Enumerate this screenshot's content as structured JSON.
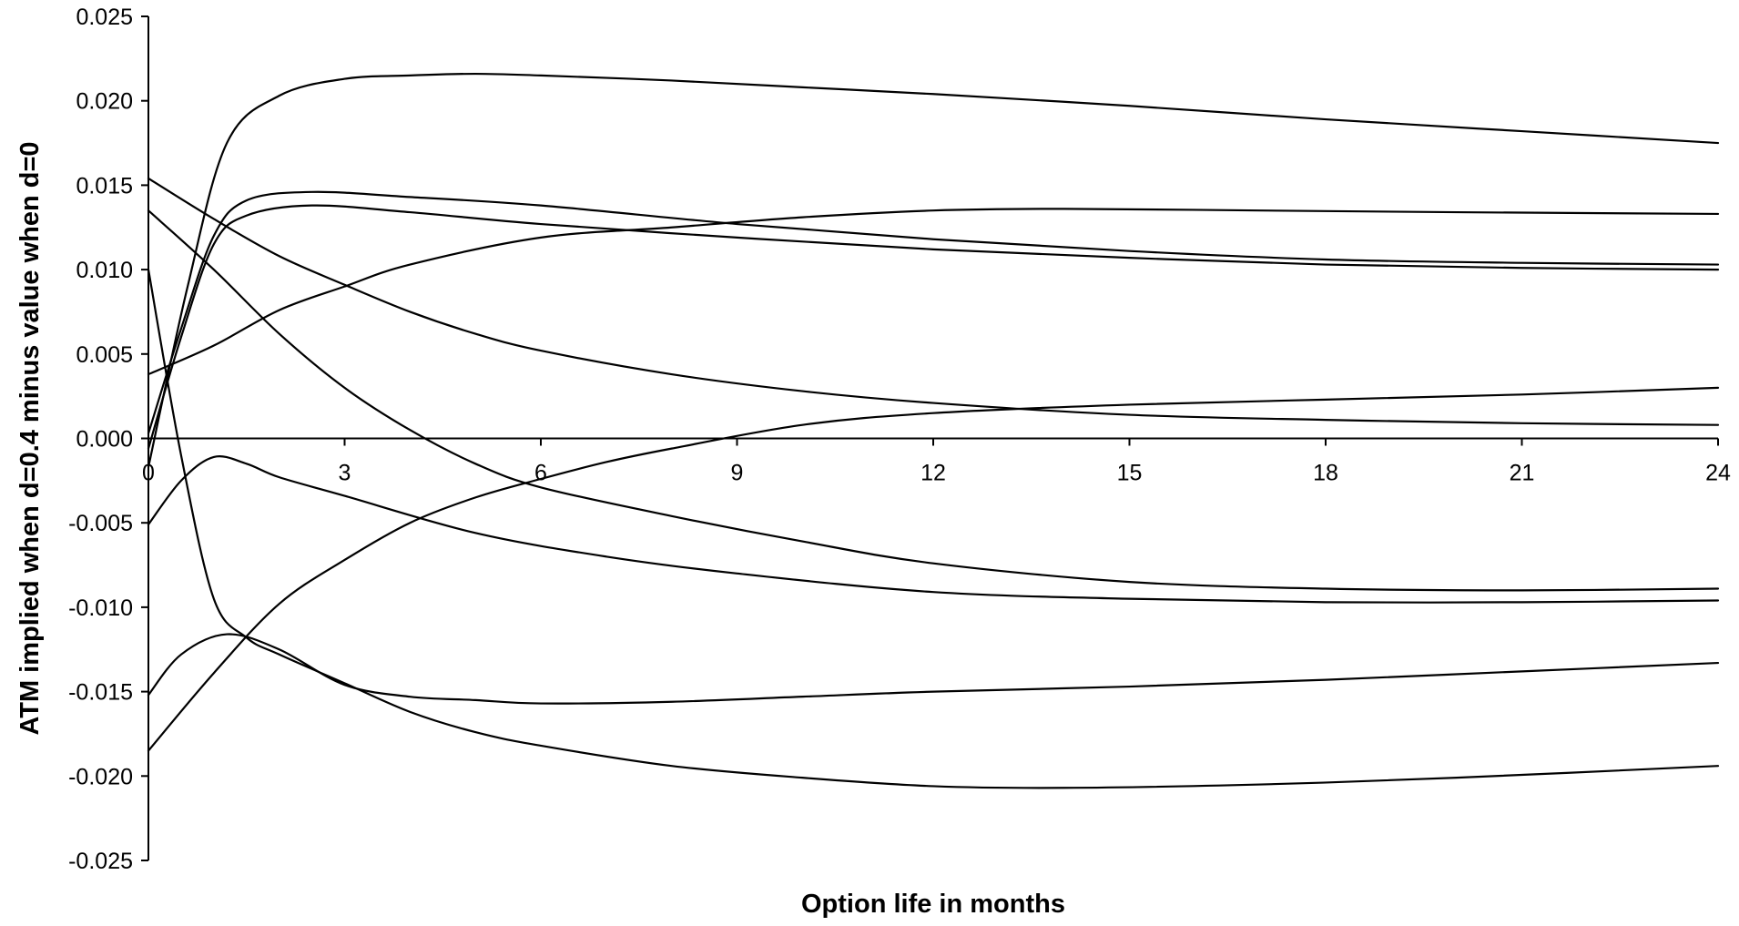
{
  "chart_data": {
    "type": "line",
    "title": "",
    "xlabel": "Option life in months",
    "ylabel": "ATM implied when d=0.4 minus value when d=0",
    "xlim": [
      0,
      24
    ],
    "ylim": [
      -0.025,
      0.025
    ],
    "x_ticks": [
      "0",
      "3",
      "6",
      "9",
      "12",
      "15",
      "18",
      "21",
      "24"
    ],
    "y_ticks": [
      "0.025",
      "0.020",
      "0.015",
      "0.010",
      "0.005",
      "0.000",
      "-0.005",
      "-0.010",
      "-0.015",
      "-0.020",
      "-0.025"
    ],
    "grid": false,
    "legend": "none",
    "line_color": "#000000",
    "series": [
      {
        "x": [
          0,
          0.6,
          1.2,
          2,
          3,
          4,
          5,
          6,
          8,
          10,
          12,
          15,
          18,
          21,
          24
        ],
        "values": [
          -0.0017,
          0.009,
          0.0175,
          0.0203,
          0.0213,
          0.0215,
          0.0216,
          0.0215,
          0.0212,
          0.0208,
          0.0204,
          0.0197,
          0.0189,
          0.0182,
          0.0175
        ]
      },
      {
        "x": [
          0,
          0.5,
          1,
          1.5,
          2.5,
          4,
          6,
          9,
          12,
          15,
          18,
          21,
          24
        ],
        "values": [
          0.0003,
          0.0065,
          0.012,
          0.0141,
          0.0146,
          0.0143,
          0.0138,
          0.0127,
          0.0118,
          0.0111,
          0.0106,
          0.0104,
          0.0103
        ]
      },
      {
        "x": [
          0,
          0.5,
          1,
          1.5,
          2.5,
          4,
          6,
          9,
          12,
          15,
          18,
          21,
          24
        ],
        "values": [
          -0.0006,
          0.006,
          0.0115,
          0.0132,
          0.0138,
          0.0134,
          0.0127,
          0.0119,
          0.0112,
          0.0107,
          0.0103,
          0.0101,
          0.01
        ]
      },
      {
        "x": [
          0,
          1,
          2,
          3,
          4,
          6,
          8,
          10,
          12,
          14,
          17,
          20,
          24
        ],
        "values": [
          0.0038,
          0.0055,
          0.0076,
          0.009,
          0.0103,
          0.0119,
          0.0125,
          0.0131,
          0.0135,
          0.0136,
          0.0135,
          0.0134,
          0.0133
        ]
      },
      {
        "x": [
          0,
          1,
          2,
          3,
          4,
          5,
          6,
          8,
          10,
          12,
          15,
          18,
          21,
          24
        ],
        "values": [
          0.0154,
          0.013,
          0.0108,
          0.0091,
          0.0075,
          0.0062,
          0.0052,
          0.0038,
          0.0028,
          0.0021,
          0.0014,
          0.0011,
          0.0009,
          0.0008
        ]
      },
      {
        "x": [
          0,
          1,
          2,
          3,
          4,
          5,
          6,
          8,
          10,
          12,
          15,
          18,
          21,
          24
        ],
        "values": [
          0.0135,
          0.01,
          0.0062,
          0.003,
          0.0005,
          -0.0015,
          -0.0029,
          -0.0046,
          -0.0061,
          -0.0074,
          -0.0085,
          -0.0089,
          -0.009,
          -0.0089
        ]
      },
      {
        "x": [
          0,
          0.5,
          1,
          1.5,
          2,
          3,
          5,
          7,
          9,
          12,
          15,
          18,
          21,
          24
        ],
        "values": [
          -0.0051,
          -0.0025,
          -0.0011,
          -0.0015,
          -0.0023,
          -0.0034,
          -0.0056,
          -0.007,
          -0.008,
          -0.0091,
          -0.0095,
          -0.0097,
          -0.0097,
          -0.0096
        ]
      },
      {
        "x": [
          0,
          1,
          2,
          3,
          4,
          5,
          6,
          7,
          8,
          10,
          12,
          15,
          18,
          21,
          24
        ],
        "values": [
          -0.0185,
          -0.0139,
          -0.0098,
          -0.0072,
          -0.005,
          -0.0035,
          -0.0024,
          -0.0014,
          -0.0006,
          0.0008,
          0.0015,
          0.002,
          0.0023,
          0.0026,
          0.003
        ]
      },
      {
        "x": [
          0,
          0.5,
          1.2,
          2,
          3,
          4,
          5,
          6,
          8,
          10,
          12,
          15,
          18,
          21,
          24
        ],
        "values": [
          -0.0152,
          -0.0128,
          -0.0116,
          -0.0125,
          -0.0146,
          -0.0153,
          -0.0155,
          -0.0157,
          -0.0156,
          -0.0153,
          -0.015,
          -0.0147,
          -0.0143,
          -0.0138,
          -0.0133
        ]
      },
      {
        "x": [
          0,
          0.5,
          1,
          1.5,
          2,
          3,
          4,
          5,
          6,
          8,
          10,
          12,
          14,
          17,
          20,
          24
        ],
        "values": [
          0.01,
          -0.001,
          -0.0095,
          -0.0118,
          -0.0128,
          -0.0145,
          -0.0162,
          -0.0174,
          -0.0182,
          -0.0194,
          -0.0201,
          -0.0206,
          -0.0207,
          -0.0205,
          -0.0201,
          -0.0194
        ]
      }
    ]
  }
}
